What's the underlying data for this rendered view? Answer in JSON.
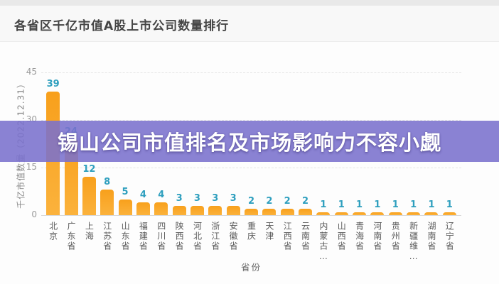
{
  "header": {
    "title": "各省区千亿市值A股上市公司数量排行"
  },
  "banner": {
    "text": "锡山公司市值排名及市场影响力不容小觑",
    "background": "#7a71cd",
    "text_color": "#ffffff"
  },
  "chart_data": {
    "type": "bar",
    "title": "各省区千亿市值A股上市公司数量排行",
    "xlabel": "省份",
    "ylabel": "千亿市值数量（2022.12.31）",
    "ylim": [
      0,
      45
    ],
    "yticks": [
      0,
      15,
      30,
      45
    ],
    "grid": "horizontal-dashed",
    "legend": "none",
    "bar_color": "#f9a825",
    "value_label_color": "#2e9fbe",
    "categories": [
      "北京",
      "广东省",
      "上海",
      "江苏省",
      "山东省",
      "福建省",
      "四川省",
      "陕西省",
      "河北省",
      "浙江省",
      "安徽省",
      "重庆",
      "天津",
      "江西省",
      "云南省",
      "内蒙古…",
      "山西省",
      "青海省",
      "河南省",
      "贵州省",
      "新疆维…",
      "湖南省",
      "辽宁省"
    ],
    "values": [
      39,
      24,
      12,
      8,
      5,
      4,
      4,
      3,
      3,
      3,
      3,
      2,
      2,
      2,
      2,
      1,
      1,
      1,
      1,
      1,
      1,
      1,
      1
    ]
  }
}
